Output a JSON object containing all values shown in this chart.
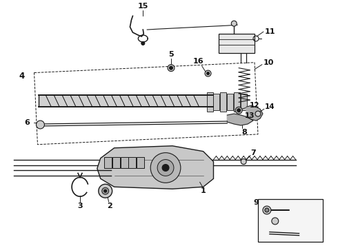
{
  "bg_color": "#ffffff",
  "line_color": "#1a1a1a",
  "label_color": "#111111",
  "fig_w": 4.9,
  "fig_h": 3.6,
  "dpi": 100
}
